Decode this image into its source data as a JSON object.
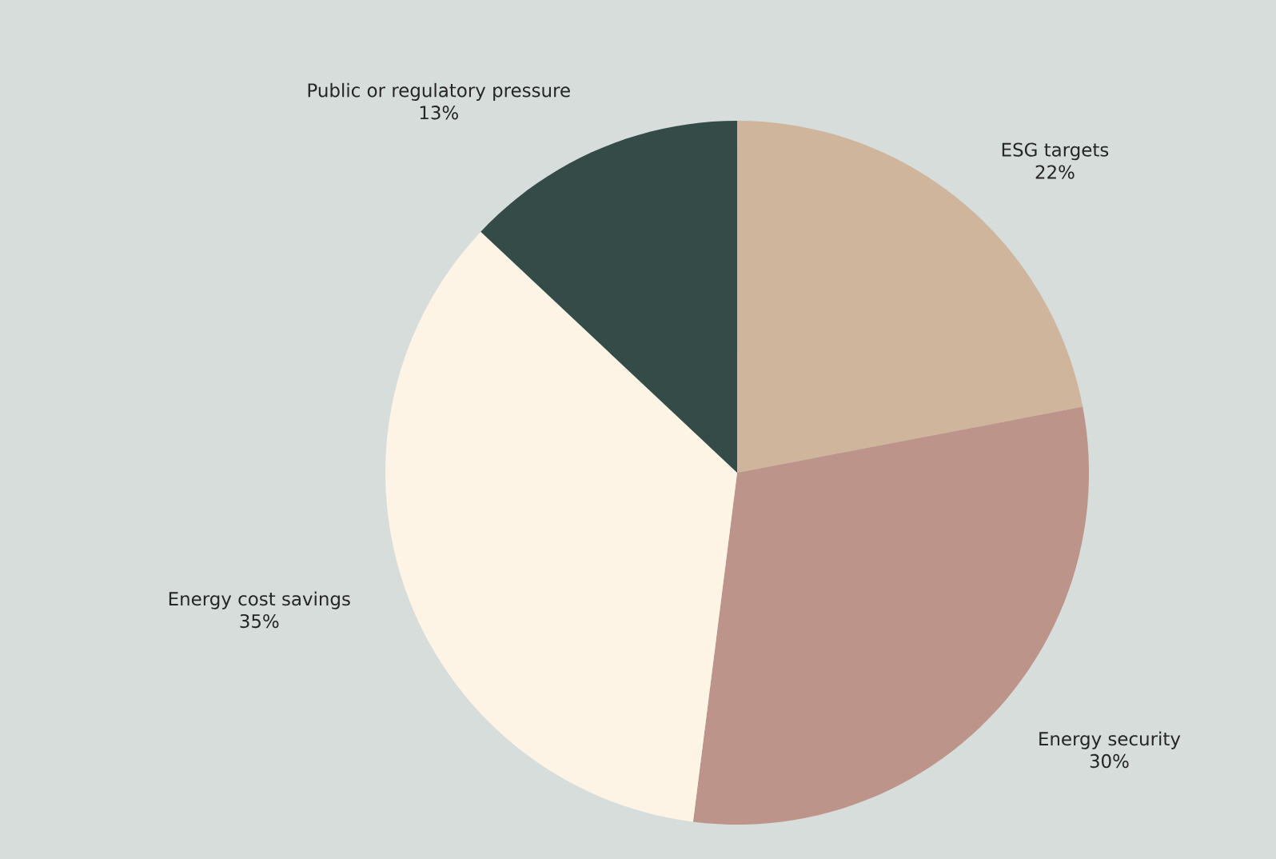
{
  "chart_data": {
    "type": "pie",
    "categories": [
      "ESG targets",
      "Energy security",
      "Energy cost savings",
      "Public or regulatory pressure"
    ],
    "values": [
      22,
      30,
      35,
      13
    ],
    "colors": [
      "#cfb59c",
      "#bc948a",
      "#fdf4e6",
      "#354b48"
    ],
    "value_labels": [
      "22%",
      "30%",
      "35%",
      "13%"
    ]
  }
}
